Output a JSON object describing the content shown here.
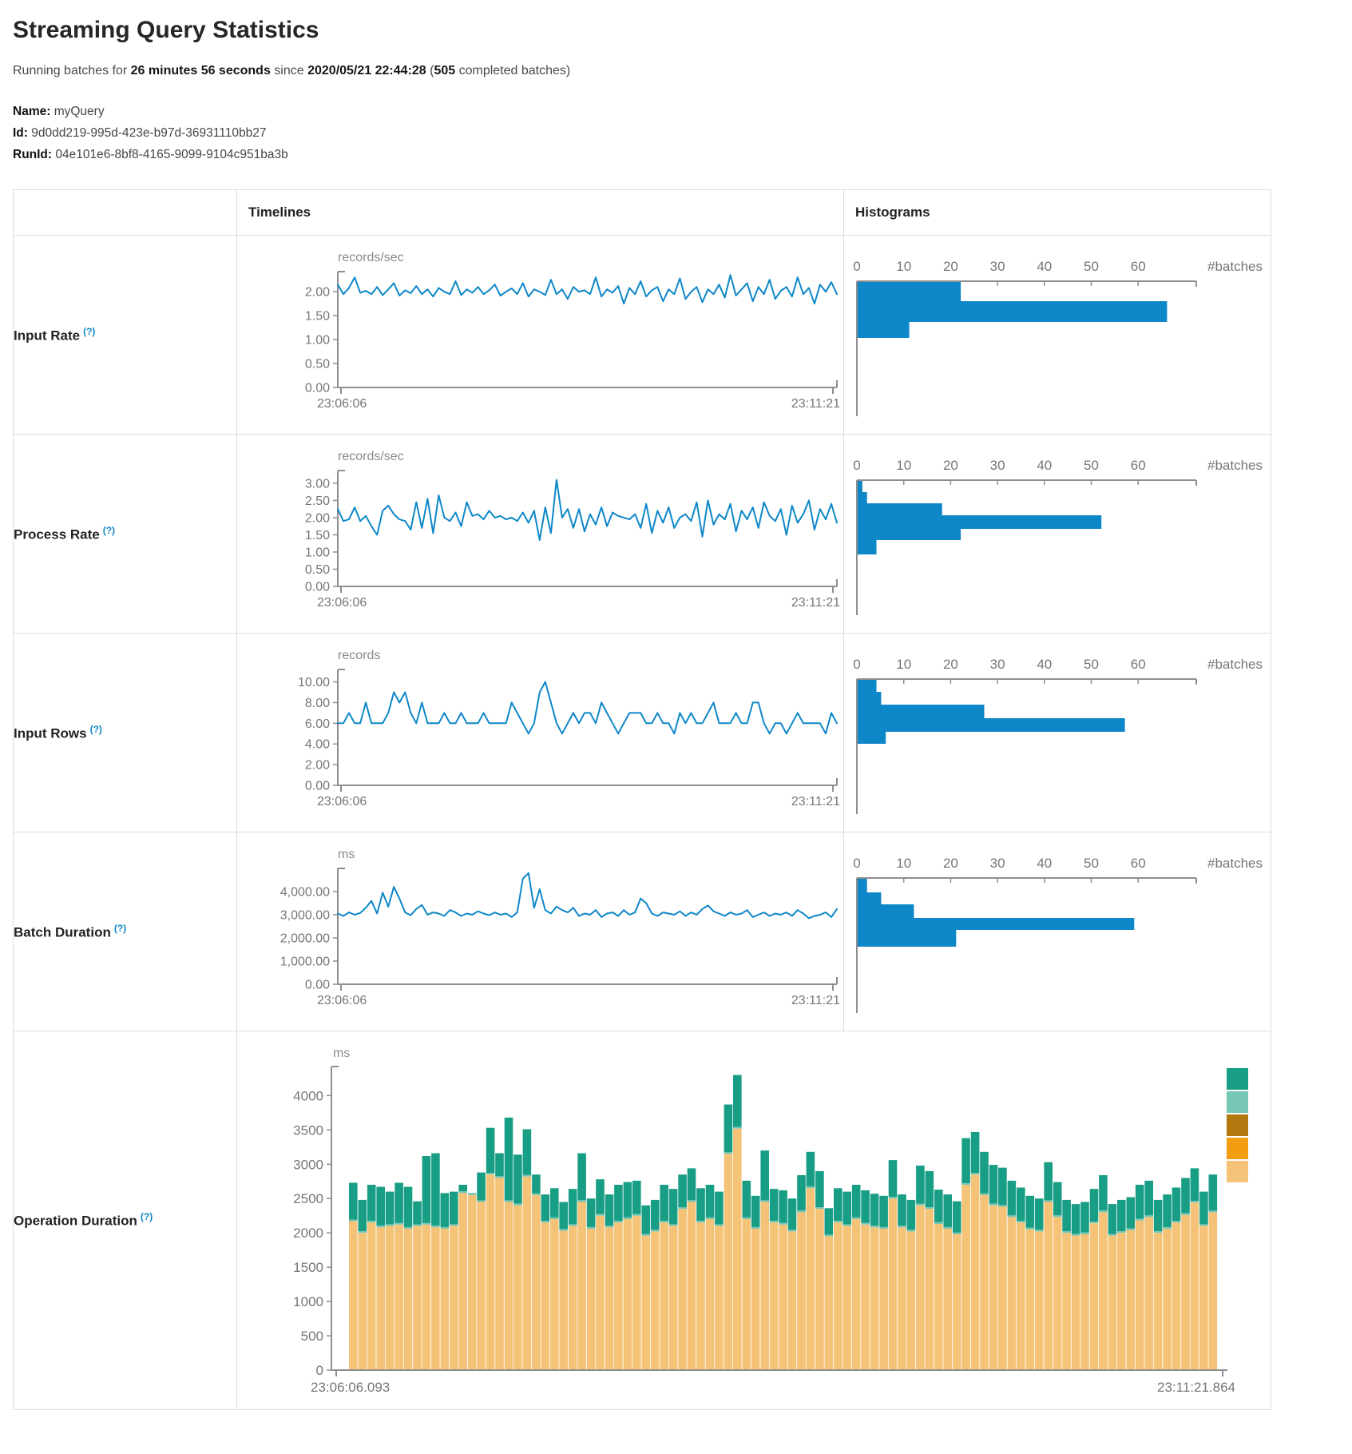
{
  "page": {
    "title": "Streaming Query Statistics",
    "subtitle": {
      "prefix": "Running batches for ",
      "duration": "26 minutes 56 seconds",
      "mid": " since ",
      "start_time": "2020/05/21 22:44:28",
      "paren_open": " (",
      "batches": "505",
      "suffix": " completed batches)"
    },
    "name_label": "Name:",
    "name_value": "myQuery",
    "id_label": "Id:",
    "id_value": "9d0dd219-995d-423e-b97d-36931110bb27",
    "runid_label": "RunId:",
    "runid_value": "04e101e6-8bf8-4165-9099-9104c951ba3b"
  },
  "table": {
    "col_timelines": "Timelines",
    "col_histograms": "Histograms",
    "help_marker": "(?)",
    "hist_axis_label": "#batches",
    "hist_ticks": [
      0,
      10,
      20,
      30,
      40,
      50,
      60
    ]
  },
  "colors": {
    "line": "#0e87c8",
    "hist_bar": "#0e87c8",
    "axis": "#8e8e8e",
    "legend": [
      "#189e84",
      "#76c6b4",
      "#b5770f",
      "#f39d11",
      "#f5c377"
    ],
    "stack_bottom": "#f5c377",
    "stack_sliver": "#76c6b4",
    "stack_top": "#189e84"
  },
  "chart_data": [
    {
      "type": "line",
      "row_label": "Input Rate",
      "unit": "records/sec",
      "x_start": "23:06:06",
      "x_end": "23:11:21",
      "y_ticks": [
        0,
        0.5,
        1,
        1.5,
        2
      ],
      "y_tick_labels": [
        "0.00",
        "0.50",
        "1.00",
        "1.50",
        "2.00"
      ],
      "y_max": 2.42,
      "values": [
        2.15,
        1.95,
        2.08,
        2.3,
        1.98,
        2.02,
        1.95,
        2.1,
        1.93,
        2.05,
        2.18,
        1.92,
        2.03,
        1.97,
        2.12,
        1.95,
        2.05,
        1.9,
        2.08,
        2.0,
        1.95,
        2.22,
        1.93,
        2.05,
        1.98,
        2.1,
        1.95,
        2.03,
        2.15,
        1.92,
        2.0,
        2.07,
        1.95,
        2.18,
        1.9,
        2.05,
        2.0,
        1.93,
        2.25,
        1.95,
        2.05,
        1.85,
        2.1,
        2.0,
        2.03,
        1.95,
        2.3,
        1.9,
        2.05,
        1.98,
        2.12,
        1.75,
        2.08,
        1.95,
        2.22,
        1.9,
        2.03,
        2.1,
        1.8,
        2.05,
        1.95,
        2.28,
        1.85,
        2.0,
        2.1,
        1.78,
        2.05,
        1.95,
        2.15,
        1.88,
        2.35,
        1.92,
        2.05,
        2.18,
        1.8,
        2.1,
        1.95,
        2.25,
        1.85,
        2.02,
        2.1,
        1.9,
        2.3,
        1.95,
        2.08,
        1.75,
        2.15,
        2.0,
        2.2,
        1.95
      ],
      "histogram": {
        "bins": [
          {
            "count": 22,
            "h": 24
          },
          {
            "count": 66,
            "h": 26
          },
          {
            "count": 11,
            "h": 20
          }
        ]
      }
    },
    {
      "type": "line",
      "row_label": "Process Rate",
      "unit": "records/sec",
      "x_start": "23:06:06",
      "x_end": "23:11:21",
      "y_ticks": [
        0,
        0.5,
        1,
        1.5,
        2,
        2.5,
        3
      ],
      "y_tick_labels": [
        "0.00",
        "0.50",
        "1.00",
        "1.50",
        "2.00",
        "2.50",
        "3.00"
      ],
      "y_max": 3.37,
      "values": [
        2.25,
        1.9,
        1.95,
        2.3,
        1.9,
        2.05,
        1.75,
        1.5,
        2.2,
        2.35,
        2.1,
        1.95,
        1.9,
        1.65,
        2.45,
        1.7,
        2.55,
        1.55,
        2.65,
        2.0,
        1.9,
        2.15,
        1.75,
        2.45,
        2.05,
        2.1,
        1.95,
        2.2,
        2.0,
        2.05,
        1.95,
        2.0,
        1.9,
        2.15,
        1.85,
        2.2,
        1.35,
        2.3,
        1.55,
        3.1,
        2.0,
        2.25,
        1.7,
        2.25,
        1.6,
        2.1,
        1.8,
        2.3,
        1.75,
        2.15,
        2.05,
        2.0,
        1.95,
        2.1,
        1.7,
        2.4,
        1.55,
        2.2,
        1.85,
        2.3,
        1.7,
        2.0,
        2.1,
        1.9,
        2.45,
        1.45,
        2.5,
        1.8,
        2.1,
        1.95,
        2.4,
        1.6,
        2.2,
        1.95,
        2.3,
        1.7,
        2.45,
        2.05,
        1.9,
        2.25,
        1.5,
        2.35,
        1.85,
        2.1,
        2.5,
        1.65,
        2.25,
        1.95,
        2.4,
        1.85
      ],
      "histogram": {
        "bins": [
          {
            "count": 1,
            "h": 14
          },
          {
            "count": 2,
            "h": 14
          },
          {
            "count": 18,
            "h": 15
          },
          {
            "count": 52,
            "h": 17
          },
          {
            "count": 22,
            "h": 14
          },
          {
            "count": 4,
            "h": 18
          }
        ]
      }
    },
    {
      "type": "line",
      "row_label": "Input Rows",
      "unit": "records",
      "x_start": "23:06:06",
      "x_end": "23:11:21",
      "y_ticks": [
        0,
        2,
        4,
        6,
        8,
        10
      ],
      "y_tick_labels": [
        "0.00",
        "2.00",
        "4.00",
        "6.00",
        "8.00",
        "10.00"
      ],
      "y_max": 11.2,
      "values": [
        6,
        6,
        7,
        6,
        6,
        8,
        6,
        6,
        6,
        7,
        9,
        8,
        9,
        7,
        6,
        8,
        6,
        6,
        6,
        7,
        6,
        6,
        7,
        6,
        6,
        6,
        7,
        6,
        6,
        6,
        6,
        8,
        7,
        6,
        5,
        6,
        9,
        10,
        8,
        6,
        5,
        6,
        7,
        6,
        7,
        7,
        6,
        8,
        7,
        6,
        5,
        6,
        7,
        7,
        7,
        6,
        6,
        7,
        6,
        6,
        5,
        7,
        6,
        7,
        6,
        6,
        7,
        8,
        6,
        6,
        6,
        7,
        6,
        6,
        8,
        8,
        6,
        5,
        6,
        6,
        5,
        6,
        7,
        6,
        6,
        6,
        6,
        5,
        7,
        6
      ],
      "histogram": {
        "bins": [
          {
            "count": 4,
            "h": 15
          },
          {
            "count": 5,
            "h": 16
          },
          {
            "count": 27,
            "h": 17
          },
          {
            "count": 57,
            "h": 17
          },
          {
            "count": 6,
            "h": 15
          }
        ]
      }
    },
    {
      "type": "line",
      "row_label": "Batch Duration",
      "unit": "ms",
      "x_start": "23:06:06",
      "x_end": "23:11:21",
      "y_ticks": [
        0,
        1000,
        2000,
        3000,
        4000
      ],
      "y_tick_labels": [
        "0.00",
        "1,000.00",
        "2,000.00",
        "3,000.00",
        "4,000.00"
      ],
      "y_max": 5000,
      "values": [
        3050,
        2950,
        3100,
        3000,
        3080,
        3300,
        3600,
        3050,
        3950,
        3350,
        4200,
        3700,
        3100,
        2980,
        3250,
        3420,
        3000,
        3100,
        3050,
        2950,
        3200,
        3100,
        2950,
        3050,
        3000,
        3150,
        3050,
        2980,
        3100,
        3000,
        3050,
        2900,
        3100,
        4550,
        4800,
        3300,
        4100,
        3200,
        3050,
        3350,
        3200,
        3100,
        3300,
        2950,
        3050,
        3000,
        3200,
        2900,
        3050,
        3100,
        2950,
        3200,
        3000,
        3100,
        3700,
        3500,
        3050,
        2950,
        3100,
        3050,
        3000,
        3150,
        2950,
        3100,
        3000,
        3250,
        3400,
        3150,
        3050,
        2950,
        3100,
        3000,
        3050,
        3200,
        2900,
        3000,
        3100,
        2950,
        3050,
        3000,
        3100,
        2950,
        3200,
        3050,
        2850,
        2950,
        3000,
        3100,
        2900,
        3250
      ],
      "histogram": {
        "bins": [
          {
            "count": 2,
            "h": 17
          },
          {
            "count": 5,
            "h": 15
          },
          {
            "count": 12,
            "h": 17
          },
          {
            "count": 59,
            "h": 15
          },
          {
            "count": 21,
            "h": 21
          }
        ]
      }
    },
    {
      "type": "stacked-bar",
      "row_label": "Operation Duration",
      "unit": "ms",
      "x_start": "23:06:06.093",
      "x_end": "23:11:21.864",
      "y_ticks": [
        0,
        500,
        1000,
        1500,
        2000,
        2500,
        3000,
        3500,
        4000
      ],
      "y_tick_labels": [
        "0",
        "500",
        "1000",
        "1500",
        "2000",
        "2500",
        "3000",
        "3500",
        "4000"
      ],
      "y_max": 4400,
      "sliver": 25,
      "base": [
        2170,
        2000,
        2150,
        2080,
        2100,
        2120,
        2060,
        2100,
        2120,
        2080,
        2060,
        2100,
        2580,
        2550,
        2450,
        2850,
        2800,
        2450,
        2400,
        2820,
        2550,
        2150,
        2200,
        2030,
        2100,
        2450,
        2060,
        2250,
        2080,
        2150,
        2200,
        2250,
        1960,
        2020,
        2150,
        2100,
        2350,
        2450,
        2150,
        2200,
        2100,
        3150,
        3520,
        2200,
        2060,
        2450,
        2150,
        2120,
        2020,
        2300,
        2650,
        2350,
        1950,
        2150,
        2100,
        2200,
        2120,
        2080,
        2060,
        2500,
        2080,
        2020,
        2400,
        2350,
        2130,
        2060,
        1980,
        2700,
        2850,
        2550,
        2400,
        2380,
        2230,
        2150,
        2050,
        2020,
        2450,
        2230,
        2000,
        1960,
        1980,
        2140,
        2300,
        1960,
        2000,
        2040,
        2180,
        2230,
        2000,
        2060,
        2150,
        2260,
        2440,
        2100,
        2300
      ],
      "totals": [
        2730,
        2480,
        2700,
        2670,
        2600,
        2730,
        2670,
        2460,
        3120,
        3160,
        2580,
        2600,
        2700,
        2580,
        2880,
        3530,
        3160,
        3680,
        3140,
        3510,
        2850,
        2560,
        2650,
        2450,
        2640,
        3160,
        2500,
        2780,
        2560,
        2700,
        2740,
        2760,
        2400,
        2480,
        2700,
        2640,
        2850,
        2940,
        2650,
        2700,
        2600,
        3870,
        4300,
        2760,
        2540,
        3200,
        2640,
        2620,
        2500,
        2840,
        3180,
        2900,
        2360,
        2650,
        2600,
        2700,
        2620,
        2570,
        2540,
        3060,
        2560,
        2480,
        2980,
        2900,
        2630,
        2560,
        2460,
        3380,
        3470,
        3180,
        2990,
        2950,
        2760,
        2660,
        2540,
        2500,
        3030,
        2740,
        2480,
        2420,
        2450,
        2640,
        2840,
        2420,
        2480,
        2520,
        2700,
        2760,
        2480,
        2560,
        2660,
        2800,
        2940,
        2600,
        2850
      ]
    }
  ]
}
